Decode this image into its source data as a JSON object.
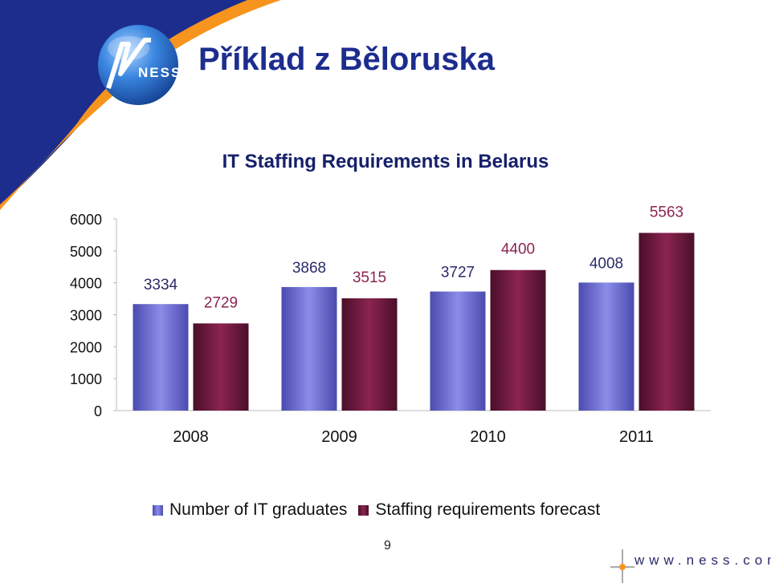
{
  "slide": {
    "title": "Příklad z Běloruska",
    "page_number": "9",
    "website": "www.ness.com",
    "logo_text": "NESS"
  },
  "colors": {
    "title": "#1c2d8e",
    "series_graduates": "#8c8ce8",
    "series_forecast": "#8b2450",
    "swoosh_orange": "#f7941d",
    "swoosh_blue": "#1c2d8e",
    "logo_blue": "#1b5fb8"
  },
  "chart_data": {
    "type": "bar",
    "title": "IT Staffing Requirements in Belarus",
    "categories": [
      "2008",
      "2009",
      "2010",
      "2011"
    ],
    "series": [
      {
        "name": "Number of IT graduates",
        "values": [
          3334,
          3868,
          3727,
          4008
        ],
        "color": "#8c8ce8",
        "label_color": "#2a2a6a"
      },
      {
        "name": "Staffing requirements forecast",
        "values": [
          2729,
          3515,
          4400,
          5563
        ],
        "color": "#8b2450",
        "label_color": "#8b2450"
      }
    ],
    "ylim": [
      0,
      6000
    ],
    "yticks": [
      0,
      1000,
      2000,
      3000,
      4000,
      5000,
      6000
    ],
    "xlabel": "",
    "ylabel": "",
    "grid": false,
    "legend": "bottom"
  }
}
